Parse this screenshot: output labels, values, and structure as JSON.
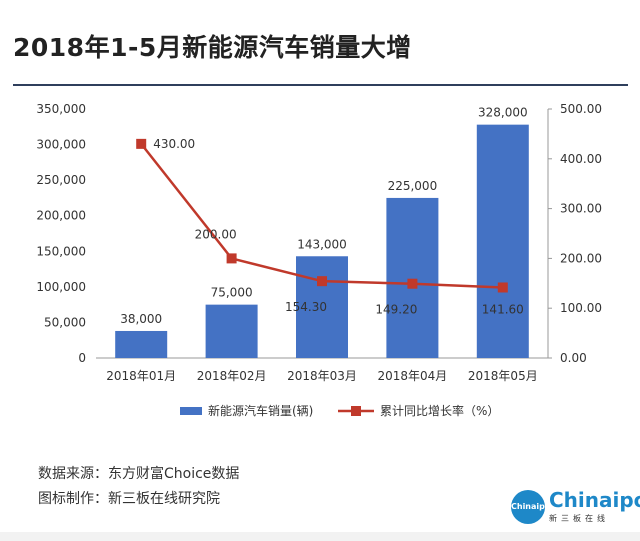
{
  "header": {
    "title": "2018年1-5月新能源汽车销量大增"
  },
  "chart_data": {
    "type": "bar+line",
    "categories": [
      "2018年01月",
      "2018年02月",
      "2018年03月",
      "2018年04月",
      "2018年05月"
    ],
    "series": [
      {
        "name": "新能源汽车销量(辆)",
        "type": "bar",
        "axis": "left",
        "color": "#4472c4",
        "values": [
          38000,
          75000,
          143000,
          225000,
          328000
        ],
        "labels": [
          "38,000",
          "75,000",
          "143,000",
          "225,000",
          "328,000"
        ]
      },
      {
        "name": "累计同比增长率（%）",
        "type": "line",
        "axis": "right",
        "color": "#c0392b",
        "values": [
          430.0,
          200.0,
          154.3,
          149.2,
          141.6
        ],
        "labels": [
          "430.00",
          "200.00",
          "154.30",
          "149.20",
          "141.60"
        ]
      }
    ],
    "left_axis": {
      "ylim": [
        0,
        350000
      ],
      "ticks": [
        "0",
        "50,000",
        "100,000",
        "150,000",
        "200,000",
        "250,000",
        "300,000",
        "350,000"
      ]
    },
    "right_axis": {
      "ylim": [
        0,
        500
      ],
      "ticks": [
        "0.00",
        "100.00",
        "200.00",
        "300.00",
        "400.00",
        "500.00"
      ]
    },
    "legend_position": "bottom",
    "grid": false
  },
  "footer": {
    "source": "数据来源：东方财富Choice数据",
    "maker": "图标制作：新三板在线研究院",
    "logo_circle": "Chinaipo",
    "logo_word": "Chinaipo",
    "logo_sub": "新三板在线"
  }
}
